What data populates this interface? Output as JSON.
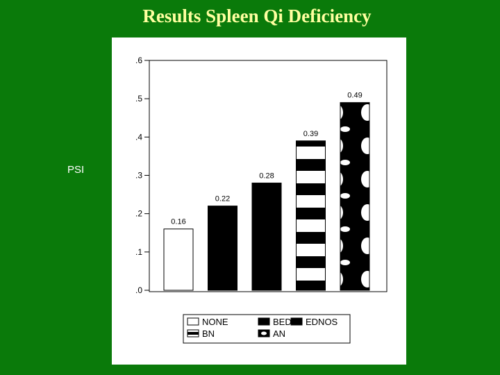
{
  "slide": {
    "title": "Results Spleen Qi Deficiency",
    "side_label": "PSI"
  },
  "chart_data": {
    "type": "bar",
    "categories": [
      "NONE",
      "BED",
      "EDNOS",
      "BN",
      "AN"
    ],
    "values": [
      0.16,
      0.22,
      0.28,
      0.39,
      0.49
    ],
    "data_labels": [
      "0.16",
      "0.22",
      "0.28",
      "0.39",
      "0.49"
    ],
    "patterns": [
      "empty",
      "solid",
      "solid",
      "stripes",
      "dots"
    ],
    "ylim": [
      0,
      0.6
    ],
    "yticks": [
      0,
      0.1,
      0.2,
      0.3,
      0.4,
      0.5,
      0.6
    ],
    "ytick_labels": [
      ".0",
      ".1",
      ".2",
      ".3",
      ".4",
      ".5",
      ".6"
    ],
    "legend": {
      "placement": "bottom",
      "entries": [
        {
          "label": "NONE",
          "pattern": "empty"
        },
        {
          "label": "BED",
          "pattern": "solid"
        },
        {
          "label": "EDNOS",
          "pattern": "solid"
        },
        {
          "label": "BN",
          "pattern": "stripes"
        },
        {
          "label": "AN",
          "pattern": "dots"
        }
      ]
    },
    "colors": {
      "fill": "#000000",
      "background": "#ffffff",
      "slide": "#0a7a0a",
      "title": "#ffffa0"
    }
  }
}
